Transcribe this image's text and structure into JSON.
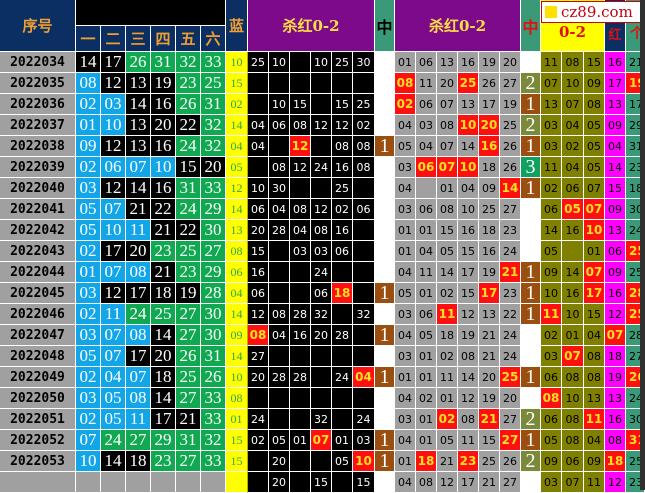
{
  "header": {
    "issue": "序号",
    "positions": [
      "一",
      "二",
      "三",
      "四",
      "五",
      "六"
    ],
    "blue": "蓝",
    "kill_a": "杀红0-2",
    "mid_a": "中",
    "kill_b": "杀红0-2",
    "mid_b": "中",
    "zero2": "0-2",
    "hong": "红",
    "ge": "个"
  },
  "logo": "cz89.com",
  "colors": {
    "low": "#12a6e8",
    "mid": "#000000",
    "high": "#10a850",
    "hit": "#ff1010",
    "blue_bg": "#ffff00",
    "header": "#0b2f63",
    "purple": "#7d0a8a"
  },
  "rows": [
    {
      "issue": "2022034",
      "reds": [
        "14",
        "17",
        "26",
        "31",
        "32",
        "33"
      ],
      "blue": "10",
      "ka": [
        "25",
        "10",
        "",
        "10",
        "25",
        "30"
      ],
      "ka_hits": [],
      "ma": "",
      "kb": [
        "01",
        "06",
        "13",
        "16",
        "19",
        "20"
      ],
      "kb_hits": [],
      "mb": "",
      "z": [
        "11",
        "08",
        "15"
      ],
      "z_hits": [],
      "hong": "16",
      "hong_hit": false,
      "ge": "21",
      "ge_hit": false
    },
    {
      "issue": "2022035",
      "reds": [
        "08",
        "12",
        "13",
        "19",
        "23",
        "25"
      ],
      "blue": "15",
      "ka": [
        "",
        "",
        "",
        "",
        "",
        ""
      ],
      "ka_hits": [],
      "ma": "",
      "kb": [
        "08",
        "11",
        "20",
        "25",
        "26",
        "27"
      ],
      "kb_hits": [
        0,
        3
      ],
      "mb": "2",
      "z": [
        "07",
        "10",
        "09"
      ],
      "z_hits": [],
      "hong": "17",
      "hong_hit": false,
      "ge": "19",
      "ge_hit": true
    },
    {
      "issue": "2022036",
      "reds": [
        "02",
        "03",
        "14",
        "16",
        "26",
        "31"
      ],
      "blue": "02",
      "ka": [
        "",
        "10",
        "15",
        "",
        "15",
        "25"
      ],
      "ka_hits": [],
      "ma": "",
      "kb": [
        "02",
        "06",
        "07",
        "13",
        "17",
        "19"
      ],
      "kb_hits": [
        0
      ],
      "mb": "1",
      "z": [
        "13",
        "07",
        "08"
      ],
      "z_hits": [],
      "hong": "13",
      "hong_hit": false,
      "ge": "17",
      "ge_hit": false
    },
    {
      "issue": "2022037",
      "reds": [
        "01",
        "10",
        "13",
        "20",
        "22",
        "32"
      ],
      "blue": "14",
      "ka": [
        "04",
        "06",
        "08",
        "12",
        "12",
        "02"
      ],
      "ka_hits": [],
      "ma": "",
      "kb": [
        "04",
        "03",
        "08",
        "10",
        "20",
        "25"
      ],
      "kb_hits": [
        3,
        4
      ],
      "mb": "2",
      "z": [
        "03",
        "04",
        "05"
      ],
      "z_hits": [],
      "hong": "09",
      "hong_hit": false,
      "ge": "29",
      "ge_hit": false
    },
    {
      "issue": "2022038",
      "reds": [
        "09",
        "12",
        "13",
        "16",
        "24",
        "32"
      ],
      "blue": "04",
      "ka": [
        "04",
        "",
        "12",
        "",
        "08",
        "08"
      ],
      "ka_hits": [
        2
      ],
      "ma": "1",
      "kb": [
        "05",
        "04",
        "07",
        "14",
        "16",
        "26"
      ],
      "kb_hits": [
        4
      ],
      "mb": "1",
      "z": [
        "03",
        "02",
        "05"
      ],
      "z_hits": [],
      "hong": "04",
      "hong_hit": false,
      "ge": "31",
      "ge_hit": false
    },
    {
      "issue": "2022039",
      "reds": [
        "02",
        "06",
        "07",
        "10",
        "15",
        "20"
      ],
      "blue": "05",
      "ka": [
        "",
        "08",
        "12",
        "24",
        "16",
        "08"
      ],
      "ka_hits": [],
      "ma": "",
      "kb": [
        "03",
        "06",
        "07",
        "10",
        "18",
        "26"
      ],
      "kb_hits": [
        1,
        2,
        3
      ],
      "mb": "3",
      "z": [
        "11",
        "04",
        "05"
      ],
      "z_hits": [],
      "hong": "14",
      "hong_hit": false,
      "ge": "23",
      "ge_hit": false
    },
    {
      "issue": "2022040",
      "reds": [
        "03",
        "12",
        "14",
        "16",
        "31",
        "33"
      ],
      "blue": "12",
      "ka": [
        "10",
        "30",
        "",
        "",
        "25",
        ""
      ],
      "ka_hits": [],
      "ma": "",
      "kb": [
        "04",
        "",
        "01",
        "04",
        "09",
        "14"
      ],
      "kb_hits": [
        5
      ],
      "mb": "1",
      "z": [
        "02",
        "06",
        "07"
      ],
      "z_hits": [],
      "hong": "15",
      "hong_hit": false,
      "ge": "18",
      "ge_hit": false
    },
    {
      "issue": "2022041",
      "reds": [
        "05",
        "07",
        "21",
        "22",
        "24",
        "29"
      ],
      "blue": "14",
      "ka": [
        "06",
        "04",
        "08",
        "12",
        "02",
        "06"
      ],
      "ka_hits": [],
      "ma": "",
      "kb": [
        "03",
        "06",
        "08",
        "10",
        "25",
        "27"
      ],
      "kb_hits": [],
      "mb": "",
      "z": [
        "06",
        "05",
        "07"
      ],
      "z_hits": [
        1,
        2
      ],
      "hong": "09",
      "hong_hit": false,
      "ge": "30",
      "ge_hit": false
    },
    {
      "issue": "2022042",
      "reds": [
        "05",
        "10",
        "11",
        "21",
        "22",
        "30"
      ],
      "blue": "13",
      "ka": [
        "20",
        "28",
        "04",
        "08",
        "16",
        ""
      ],
      "ka_hits": [],
      "ma": "",
      "kb": [
        "01",
        "01",
        "15",
        "16",
        "18",
        "23"
      ],
      "kb_hits": [],
      "mb": "",
      "z": [
        "14",
        "16",
        "10"
      ],
      "z_hits": [
        2
      ],
      "hong": "13",
      "hong_hit": false,
      "ge": "24",
      "ge_hit": false
    },
    {
      "issue": "2022043",
      "reds": [
        "02",
        "17",
        "20",
        "23",
        "25",
        "27"
      ],
      "blue": "08",
      "ka": [
        "15",
        "",
        "03",
        "03",
        "06",
        ""
      ],
      "ka_hits": [],
      "ma": "",
      "kb": [
        "01",
        "04",
        "05",
        "15",
        "16",
        "24"
      ],
      "kb_hits": [],
      "mb": "",
      "z": [
        "05",
        "",
        "01"
      ],
      "z_hits": [],
      "hong": "06",
      "hong_hit": false,
      "ge": "25",
      "ge_hit": true
    },
    {
      "issue": "2022044",
      "reds": [
        "01",
        "07",
        "08",
        "21",
        "23",
        "29"
      ],
      "blue": "06",
      "ka": [
        "16",
        "",
        "",
        "24",
        "",
        ""
      ],
      "ka_hits": [],
      "ma": "",
      "kb": [
        "04",
        "11",
        "14",
        "17",
        "19",
        "21"
      ],
      "kb_hits": [
        5
      ],
      "mb": "1",
      "z": [
        "09",
        "14",
        "07"
      ],
      "z_hits": [
        2
      ],
      "hong": "09",
      "hong_hit": false,
      "ge": "25",
      "ge_hit": false
    },
    {
      "issue": "2022045",
      "reds": [
        "03",
        "12",
        "17",
        "18",
        "19",
        "28"
      ],
      "blue": "04",
      "ka": [
        "06",
        "",
        "",
        "06",
        "18",
        ""
      ],
      "ka_hits": [
        4
      ],
      "ma": "1",
      "kb": [
        "05",
        "01",
        "02",
        "15",
        "17",
        "23"
      ],
      "kb_hits": [
        4
      ],
      "mb": "1",
      "z": [
        "10",
        "16",
        "17"
      ],
      "z_hits": [
        2
      ],
      "hong": "16",
      "hong_hit": false,
      "ge": "28",
      "ge_hit": true
    },
    {
      "issue": "2022046",
      "reds": [
        "02",
        "11",
        "24",
        "25",
        "27",
        "30"
      ],
      "blue": "14",
      "ka": [
        "12",
        "08",
        "28",
        "32",
        "",
        "32"
      ],
      "ka_hits": [],
      "ma": "",
      "kb": [
        "03",
        "06",
        "11",
        "12",
        "13",
        "22"
      ],
      "kb_hits": [
        2
      ],
      "mb": "1",
      "z": [
        "11",
        "10",
        "15"
      ],
      "z_hits": [
        0
      ],
      "hong": "12",
      "hong_hit": false,
      "ge": "25",
      "ge_hit": true
    },
    {
      "issue": "2022047",
      "reds": [
        "03",
        "07",
        "08",
        "14",
        "27",
        "30"
      ],
      "blue": "09",
      "ka": [
        "08",
        "04",
        "16",
        "20",
        "28",
        ""
      ],
      "ka_hits": [
        0
      ],
      "ma": "1",
      "kb": [
        "04",
        "05",
        "18",
        "19",
        "21",
        "24"
      ],
      "kb_hits": [],
      "mb": "",
      "z": [
        "02",
        "01",
        "04"
      ],
      "z_hits": [],
      "hong": "07",
      "hong_hit": true,
      "ge": "28",
      "ge_hit": false
    },
    {
      "issue": "2022048",
      "reds": [
        "05",
        "07",
        "17",
        "20",
        "26",
        "31"
      ],
      "blue": "14",
      "ka": [
        "27",
        "",
        "",
        "",
        "",
        ""
      ],
      "ka_hits": [],
      "ma": "",
      "kb": [
        "03",
        "01",
        "02",
        "08",
        "21",
        "24"
      ],
      "kb_hits": [],
      "mb": "",
      "z": [
        "03",
        "07",
        "08"
      ],
      "z_hits": [
        1
      ],
      "hong": "18",
      "hong_hit": false,
      "ge": "27",
      "ge_hit": false
    },
    {
      "issue": "2022049",
      "reds": [
        "02",
        "04",
        "07",
        "18",
        "25",
        "26"
      ],
      "blue": "10",
      "ka": [
        "20",
        "28",
        "28",
        "",
        "24",
        "04"
      ],
      "ka_hits": [
        5
      ],
      "ma": "1",
      "kb": [
        "01",
        "01",
        "11",
        "14",
        "20",
        "25"
      ],
      "kb_hits": [
        5
      ],
      "mb": "1",
      "z": [
        "06",
        "08",
        "08"
      ],
      "z_hits": [],
      "hong": "19",
      "hong_hit": false,
      "ge": "26",
      "ge_hit": true
    },
    {
      "issue": "2022050",
      "reds": [
        "03",
        "05",
        "08",
        "14",
        "27",
        "33"
      ],
      "blue": "08",
      "ka": [
        "",
        "",
        "",
        "",
        "",
        ""
      ],
      "ka_hits": [],
      "ma": "",
      "kb": [
        "04",
        "02",
        "01",
        "12",
        "19",
        "20"
      ],
      "kb_hits": [],
      "mb": "",
      "z": [
        "08",
        "10",
        "13"
      ],
      "z_hits": [
        0
      ],
      "hong": "13",
      "hong_hit": false,
      "ge": "24",
      "ge_hit": false
    },
    {
      "issue": "2022051",
      "reds": [
        "02",
        "05",
        "11",
        "17",
        "21",
        "33"
      ],
      "blue": "01",
      "ka": [
        "24",
        "",
        "",
        "32",
        "",
        "24"
      ],
      "ka_hits": [],
      "ma": "",
      "kb": [
        "03",
        "01",
        "02",
        "08",
        "21",
        "27"
      ],
      "kb_hits": [
        2,
        4
      ],
      "mb": "2",
      "z": [
        "06",
        "08",
        "11"
      ],
      "z_hits": [
        2
      ],
      "hong": "16",
      "hong_hit": false,
      "ge": "30",
      "ge_hit": false
    },
    {
      "issue": "2022052",
      "reds": [
        "07",
        "24",
        "27",
        "29",
        "31",
        "32"
      ],
      "blue": "15",
      "ka": [
        "02",
        "05",
        "01",
        "07",
        "01",
        "03"
      ],
      "ka_hits": [
        3
      ],
      "ma": "1",
      "kb": [
        "04",
        "01",
        "05",
        "11",
        "15",
        "27"
      ],
      "kb_hits": [
        5
      ],
      "mb": "1",
      "z": [
        "05",
        "08",
        "04"
      ],
      "z_hits": [],
      "hong": "08",
      "hong_hit": false,
      "ge": "31",
      "ge_hit": true
    },
    {
      "issue": "2022053",
      "reds": [
        "10",
        "14",
        "18",
        "23",
        "27",
        "33"
      ],
      "blue": "15",
      "ka": [
        "",
        "20",
        "",
        "",
        "05",
        "10"
      ],
      "ka_hits": [
        5
      ],
      "ma": "1",
      "kb": [
        "01",
        "18",
        "21",
        "23",
        "25",
        "26"
      ],
      "kb_hits": [
        1,
        3
      ],
      "mb": "2",
      "z": [
        "09",
        "06",
        "09"
      ],
      "z_hits": [],
      "hong": "18",
      "hong_hit": true,
      "ge": "25",
      "ge_hit": false
    },
    {
      "issue": "",
      "reds": [
        "",
        "",
        "",
        "",
        "",
        ""
      ],
      "blue": "",
      "ka": [
        "",
        "20",
        "",
        "15",
        "",
        "15"
      ],
      "ka_hits": [],
      "ma": "",
      "kb": [
        "04",
        "08",
        "12",
        "17",
        "21",
        "27"
      ],
      "kb_hits": [],
      "mb": "",
      "z": [
        "03",
        "07",
        "11"
      ],
      "z_hits": [],
      "hong": "12",
      "hong_hit": false,
      "ge": "23",
      "ge_hit": false
    }
  ]
}
